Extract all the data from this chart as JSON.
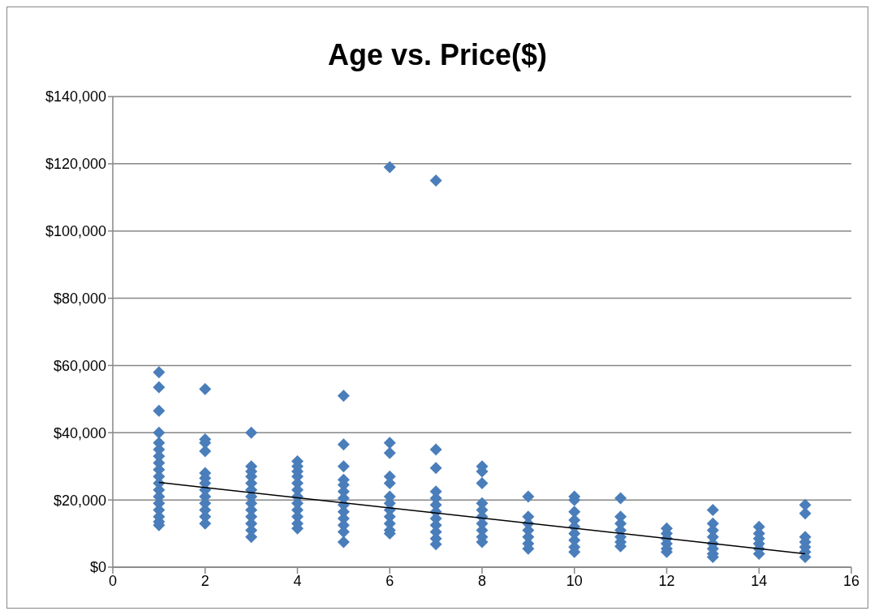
{
  "chart_data": {
    "type": "scatter",
    "title": "Age vs. Price($)",
    "xlim": [
      0,
      16
    ],
    "xticks": [
      0,
      2,
      4,
      6,
      8,
      10,
      12,
      14,
      16
    ],
    "ylim": [
      0,
      140000
    ],
    "yticks": [
      {
        "value": 0,
        "label": "$0"
      },
      {
        "value": 20000,
        "label": "$20,000"
      },
      {
        "value": 40000,
        "label": "$40,000"
      },
      {
        "value": 60000,
        "label": "$60,000"
      },
      {
        "value": 80000,
        "label": "$80,000"
      },
      {
        "value": 100000,
        "label": "$100,000"
      },
      {
        "value": 120000,
        "label": "$120,000"
      },
      {
        "value": 140000,
        "label": "$140,000"
      }
    ],
    "grid": "y",
    "marker": "diamond",
    "series": [
      {
        "type": "scatter",
        "color": "#4a7ebb",
        "x": [
          1,
          1,
          1,
          1,
          1,
          1,
          1,
          1,
          1,
          1,
          1,
          1,
          1,
          1,
          1,
          1,
          1,
          1,
          2,
          2,
          2,
          2,
          2,
          2,
          2,
          2,
          2,
          2,
          2,
          2,
          2,
          3,
          3,
          3,
          3,
          3,
          3,
          3,
          3,
          3,
          3,
          3,
          3,
          3,
          4,
          4,
          4,
          4,
          4,
          4,
          4,
          4,
          4,
          4,
          4,
          4,
          5,
          5,
          5,
          5,
          5,
          5,
          5,
          5,
          5,
          5,
          5,
          5,
          5,
          6,
          6,
          6,
          6,
          6,
          6,
          6,
          6,
          6,
          6,
          6,
          6,
          7,
          7,
          7,
          7,
          7,
          7,
          7,
          7,
          7,
          7,
          7,
          7,
          8,
          8,
          8,
          8,
          8,
          8,
          8,
          8,
          8,
          8,
          9,
          9,
          9,
          9,
          9,
          9,
          9,
          10,
          10,
          10,
          10,
          10,
          10,
          10,
          10,
          10,
          11,
          11,
          11,
          11,
          11,
          11,
          11,
          12,
          12,
          12,
          12,
          12,
          12,
          13,
          13,
          13,
          13,
          13,
          13,
          13,
          13,
          14,
          14,
          14,
          14,
          14,
          14,
          15,
          15,
          15,
          15,
          15,
          15,
          15
        ],
        "values": [
          58000,
          53500,
          46500,
          40000,
          37000,
          35000,
          33000,
          31000,
          29000,
          27000,
          25000,
          23000,
          21000,
          19000,
          17000,
          15000,
          13500,
          12500,
          53000,
          38000,
          37000,
          34500,
          28000,
          26500,
          25000,
          23000,
          21000,
          19000,
          17000,
          15000,
          13000,
          40000,
          30000,
          28500,
          27000,
          25000,
          23000,
          21000,
          19000,
          17000,
          15000,
          13000,
          11000,
          9000,
          31500,
          30000,
          28500,
          27000,
          25000,
          23000,
          21000,
          19000,
          17000,
          15000,
          13000,
          11500,
          51000,
          36500,
          30000,
          26000,
          24500,
          22500,
          20500,
          18500,
          16500,
          14500,
          12500,
          10500,
          7500,
          119000,
          37000,
          34000,
          27000,
          25000,
          21000,
          19000,
          17000,
          15000,
          13000,
          11000,
          10000,
          115000,
          35000,
          29500,
          22500,
          20500,
          18500,
          16500,
          14500,
          12500,
          10500,
          8500,
          6800,
          30000,
          28500,
          25000,
          19000,
          17000,
          15000,
          13000,
          11000,
          9000,
          7500,
          21000,
          15000,
          13000,
          11000,
          9000,
          7000,
          5500,
          21000,
          20000,
          16500,
          14000,
          12000,
          10000,
          8000,
          6000,
          4500,
          20500,
          15000,
          13000,
          11000,
          9000,
          7500,
          6200,
          11500,
          10000,
          8500,
          7000,
          5500,
          4500,
          17000,
          13000,
          11000,
          9000,
          7000,
          5500,
          4000,
          3000,
          12000,
          10000,
          8500,
          7000,
          5500,
          4000,
          18500,
          16000,
          9000,
          7500,
          6000,
          4500,
          3000
        ]
      },
      {
        "type": "line",
        "color": "#000000",
        "marker": "none",
        "line_style": "solid",
        "x": [
          1,
          15
        ],
        "values": [
          25200,
          4000
        ]
      }
    ]
  }
}
